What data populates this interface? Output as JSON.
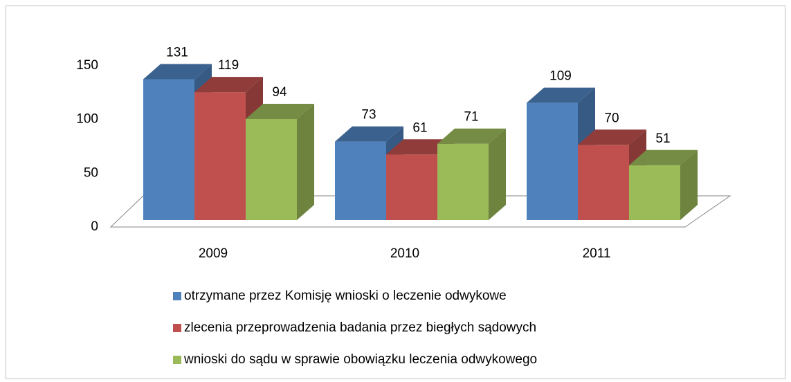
{
  "chart_data": {
    "type": "bar3d",
    "categories": [
      "2009",
      "2010",
      "2011"
    ],
    "series": [
      {
        "name": "otrzymane przez Komisję wnioski o leczenie odwykowe",
        "color": "#4f81bd",
        "values": [
          131,
          73,
          109
        ]
      },
      {
        "name": "zlecenia przeprowadzenia badania przez biegłych sądowych",
        "color": "#c0504d",
        "values": [
          119,
          61,
          70
        ]
      },
      {
        "name": "wnioski do sądu w sprawie obowiązku leczenia odwykowego",
        "color": "#9bbb59",
        "values": [
          94,
          71,
          51
        ]
      }
    ],
    "ylim": [
      0,
      150
    ],
    "yticks": [
      0,
      50,
      100,
      150
    ],
    "grid": false,
    "legend": "bottom"
  }
}
